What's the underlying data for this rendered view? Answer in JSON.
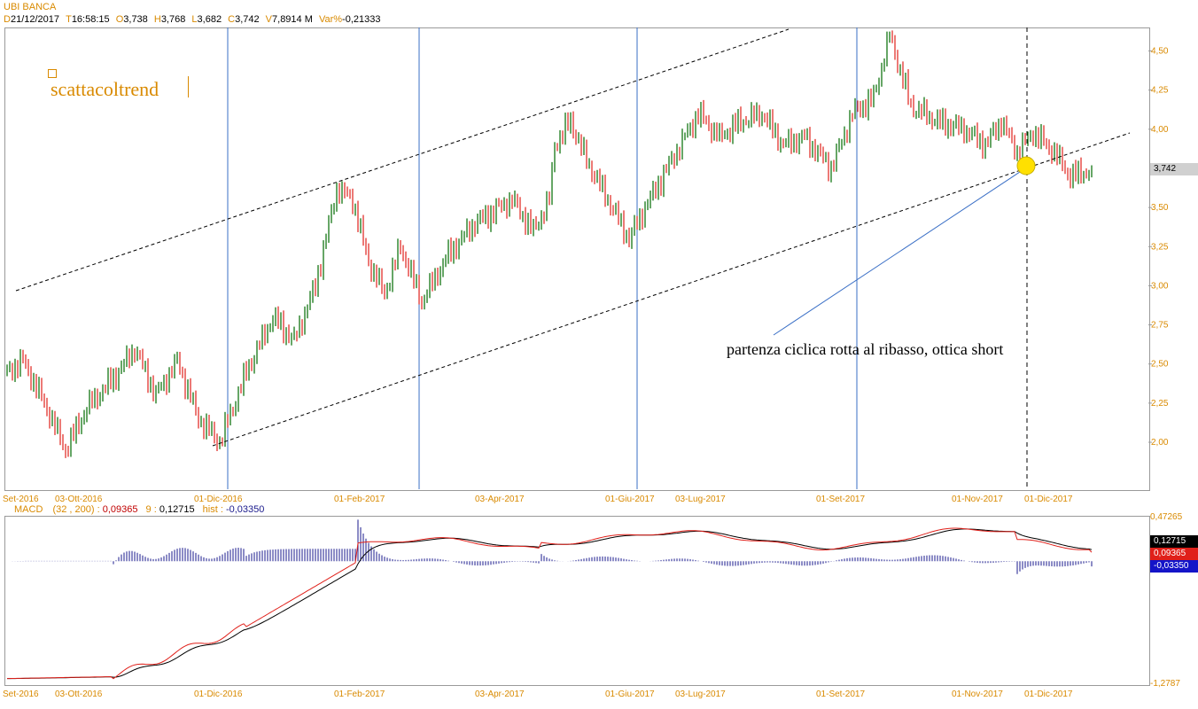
{
  "header": {
    "title": "UBI BANCA",
    "stats": [
      {
        "key": "D",
        "val": "21/12/2017"
      },
      {
        "key": "T",
        "val": "16:58:15"
      },
      {
        "key": "O",
        "val": "3,738"
      },
      {
        "key": "H",
        "val": "3,768"
      },
      {
        "key": "L",
        "val": "3,682"
      },
      {
        "key": "C",
        "val": "3,742"
      },
      {
        "key": "V",
        "val": "7,8914 M"
      },
      {
        "key": "Var%",
        "val": "-0,21333"
      }
    ]
  },
  "watermark": "scattacoltrend",
  "annotation": "partenza ciclica rotta al ribasso, ottica short",
  "colors": {
    "up": "#006a00",
    "down": "#e0201a",
    "axis_text": "#d98a00",
    "cycle_line": "#3a6fc6",
    "macd_line": "#000000",
    "signal_line": "#e0201a",
    "hist": "#1a1a8c",
    "highlight": "#ffe000"
  },
  "chart_data": [
    {
      "type": "candlestick",
      "title": "UBI BANCA",
      "ylim": [
        1.7,
        4.65
      ],
      "yticks": [
        "4,50",
        "4,25",
        "4,00",
        "3,50",
        "3,25",
        "3,00",
        "2,75",
        "2,50",
        "2,25",
        "2,00"
      ],
      "ytick_values": [
        4.5,
        4.25,
        4.0,
        3.5,
        3.25,
        3.0,
        2.75,
        2.5,
        2.25,
        2.0
      ],
      "xticks": [
        "Set-2016",
        "03-Ott-2016",
        "01-Dic-2016",
        "01-Feb-2017",
        "03-Apr-2017",
        "01-Giu-2017",
        "03-Lug-2017",
        "01-Set-2017",
        "01-Nov-2017",
        "01-Dic-2017"
      ],
      "last_value": "3,742",
      "anchors": [
        [
          0,
          2.45
        ],
        [
          6,
          2.52
        ],
        [
          14,
          2.25
        ],
        [
          22,
          1.95
        ],
        [
          30,
          2.22
        ],
        [
          42,
          2.45
        ],
        [
          48,
          2.6
        ],
        [
          56,
          2.3
        ],
        [
          64,
          2.52
        ],
        [
          72,
          2.15
        ],
        [
          80,
          2.0
        ],
        [
          90,
          2.45
        ],
        [
          100,
          2.8
        ],
        [
          108,
          2.65
        ],
        [
          116,
          3.0
        ],
        [
          124,
          3.62
        ],
        [
          130,
          3.55
        ],
        [
          136,
          3.15
        ],
        [
          142,
          2.95
        ],
        [
          148,
          3.25
        ],
        [
          156,
          2.9
        ],
        [
          166,
          3.2
        ],
        [
          176,
          3.4
        ],
        [
          190,
          3.55
        ],
        [
          198,
          3.35
        ],
        [
          204,
          3.55
        ],
        [
          206,
          3.9
        ],
        [
          212,
          4.05
        ],
        [
          218,
          3.8
        ],
        [
          226,
          3.55
        ],
        [
          234,
          3.3
        ],
        [
          240,
          3.5
        ],
        [
          250,
          3.8
        ],
        [
          260,
          4.1
        ],
        [
          268,
          3.95
        ],
        [
          276,
          4.05
        ],
        [
          284,
          4.1
        ],
        [
          292,
          3.9
        ],
        [
          300,
          3.95
        ],
        [
          310,
          3.75
        ],
        [
          318,
          4.1
        ],
        [
          326,
          4.2
        ],
        [
          332,
          4.6
        ],
        [
          340,
          4.15
        ],
        [
          350,
          4.05
        ],
        [
          360,
          4.0
        ],
        [
          368,
          3.9
        ],
        [
          374,
          4.05
        ],
        [
          380,
          3.85
        ],
        [
          386,
          3.98
        ],
        [
          394,
          3.85
        ],
        [
          400,
          3.7
        ],
        [
          408,
          3.74
        ]
      ]
    },
    {
      "type": "line",
      "title": "MACD",
      "params": "(32 , 200)",
      "values": {
        "macd": "0,09365",
        "signal": "0,12715",
        "hist": "-0,03350"
      },
      "signal_period": "9",
      "hist_label": "hist :",
      "ylim": [
        -1.2787,
        0.47265
      ],
      "yticks": [
        "0,47265",
        "-1,2787"
      ],
      "xticks": [
        "Set-2016",
        "03-Ott-2016",
        "01-Dic-2016",
        "01-Feb-2017",
        "03-Apr-2017",
        "01-Giu-2017",
        "03-Lug-2017",
        "01-Set-2017",
        "01-Nov-2017",
        "01-Dic-2017"
      ],
      "last_values": [
        "0,12715",
        "0,09365",
        "-0,03350"
      ]
    }
  ]
}
